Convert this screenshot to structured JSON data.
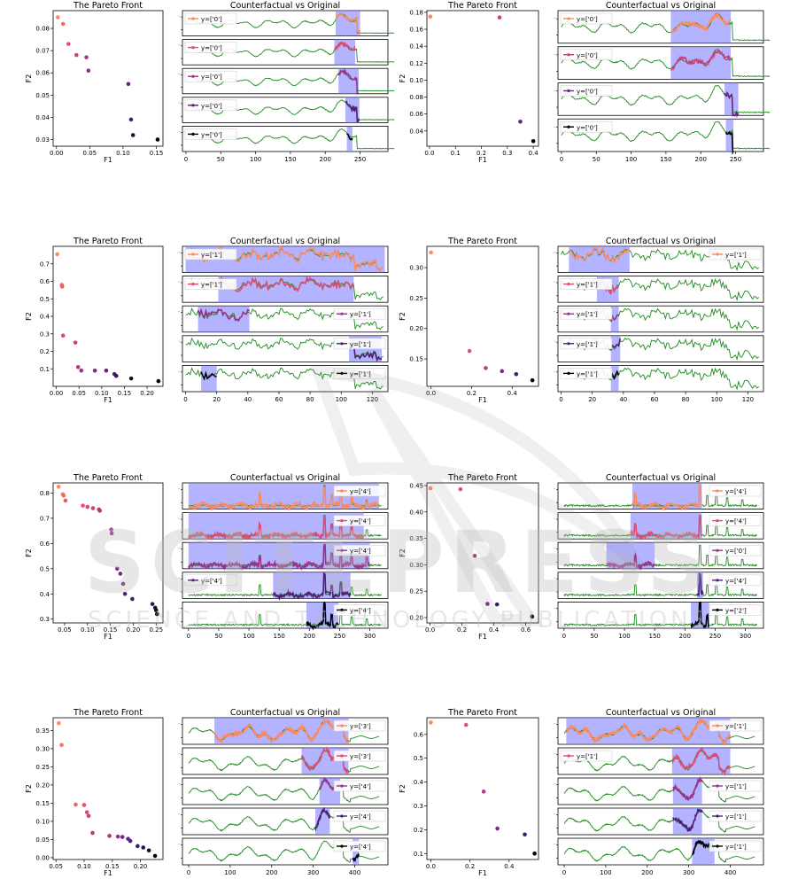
{
  "titles": {
    "pareto": "The Pareto Front",
    "cf": "Counterfactual vs Original",
    "xlabel": "F1",
    "ylabel": "F2"
  },
  "colors": {
    "original": "#1f8a1f",
    "highlight": "#8080ff",
    "gradient": [
      "#fa8a60",
      "#e8506a",
      "#b83a86",
      "#7a2a8a",
      "#401c66",
      "#000004"
    ]
  },
  "watermark": {
    "main": "SCITEPRESS",
    "sub": "SCIENCE AND TECHNOLOGY PUBLICATIONS"
  },
  "chart_data": [
    {
      "type": "scatter",
      "title": "The Pareto Front",
      "xlabel": "F1",
      "ylabel": "F2",
      "xticks": [
        "0.00",
        "0.05",
        "0.10",
        "0.15"
      ],
      "yticks": [
        "0.03",
        "0.04",
        "0.05",
        "0.06",
        "0.07",
        "0.08"
      ],
      "xlim": [
        -0.005,
        0.16
      ],
      "ylim": [
        0.027,
        0.088
      ],
      "x": [
        0.002,
        0.01,
        0.018,
        0.03,
        0.045,
        0.048,
        0.108,
        0.112,
        0.115,
        0.152
      ],
      "y": [
        0.085,
        0.082,
        0.073,
        0.068,
        0.067,
        0.061,
        0.055,
        0.039,
        0.032,
        0.03
      ]
    },
    {
      "type": "line",
      "title": "Counterfactual vs Original",
      "xticks": [
        "0",
        "50",
        "100",
        "150",
        "200",
        "250"
      ],
      "xlim": [
        -5,
        290
      ],
      "n": 300,
      "pattern": "smooth",
      "panels": [
        {
          "label": "y=['0']",
          "shade": [
            215,
            250
          ],
          "cf": [
            215,
            250
          ],
          "legend": "left"
        },
        {
          "label": "y=['0']",
          "shade": [
            213,
            243
          ],
          "cf": [
            213,
            243
          ],
          "legend": "left"
        },
        {
          "label": "y=['0']",
          "shade": [
            219,
            248
          ],
          "cf": [
            219,
            248
          ],
          "legend": "left"
        },
        {
          "label": "y=['0']",
          "shade": [
            229,
            249
          ],
          "cf": [
            229,
            249
          ],
          "legend": "left"
        },
        {
          "label": "y=['0']",
          "shade": [
            231,
            239
          ],
          "cf": [
            231,
            239
          ],
          "legend": "left"
        }
      ]
    },
    {
      "type": "scatter",
      "title": "The Pareto Front",
      "xlabel": "F1",
      "ylabel": "F2",
      "xticks": [
        "0.0",
        "0.1",
        "0.2",
        "0.3",
        "0.4"
      ],
      "yticks": [
        "0.04",
        "0.06",
        "0.08",
        "0.10",
        "0.12",
        "0.14",
        "0.16",
        "0.18"
      ],
      "xlim": [
        -0.01,
        0.42
      ],
      "ylim": [
        0.022,
        0.182
      ],
      "x": [
        0.003,
        0.27,
        0.35,
        0.4
      ],
      "y": [
        0.175,
        0.174,
        0.051,
        0.028
      ]
    },
    {
      "type": "line",
      "title": "Counterfactual vs Original",
      "xticks": [
        "0",
        "50",
        "100",
        "150",
        "200",
        "250"
      ],
      "xlim": [
        -5,
        290
      ],
      "n": 300,
      "pattern": "smooth",
      "panels": [
        {
          "label": "y=['0']",
          "shade": [
            157,
            243
          ],
          "cf": [
            157,
            243
          ],
          "legend": "left"
        },
        {
          "label": "y=['0']",
          "shade": [
            157,
            243
          ],
          "cf": [
            157,
            243
          ],
          "legend": "left"
        },
        {
          "label": "y=['0']",
          "shade": [
            234,
            254
          ],
          "cf": [
            234,
            254
          ],
          "legend": "left"
        },
        {
          "label": "y=['0']",
          "shade": [
            236,
            247
          ],
          "cf": [
            236,
            247
          ],
          "legend": "left"
        }
      ]
    },
    {
      "type": "scatter",
      "title": "The Pareto Front",
      "xlabel": "F1",
      "ylabel": "F2",
      "xticks": [
        "0.00",
        "0.05",
        "0.10",
        "0.15",
        "0.20"
      ],
      "yticks": [
        "0.1",
        "0.2",
        "0.3",
        "0.4",
        "0.5",
        "0.6",
        "0.7"
      ],
      "xlim": [
        -0.007,
        0.235
      ],
      "ylim": [
        0.0,
        0.8
      ],
      "x": [
        0.002,
        0.012,
        0.013,
        0.015,
        0.042,
        0.048,
        0.055,
        0.085,
        0.11,
        0.128,
        0.132,
        0.165,
        0.225
      ],
      "y": [
        0.755,
        0.58,
        0.57,
        0.29,
        0.25,
        0.11,
        0.09,
        0.09,
        0.09,
        0.07,
        0.06,
        0.045,
        0.03
      ]
    },
    {
      "type": "line",
      "title": "Counterfactual vs Original",
      "xticks": [
        "0",
        "20",
        "40",
        "60",
        "80",
        "100",
        "120"
      ],
      "xlim": [
        -2,
        130
      ],
      "n": 128,
      "pattern": "noisy",
      "panels": [
        {
          "label": "y=['1']",
          "shade": [
            0,
            128
          ],
          "cf": [
            0,
            128
          ],
          "legend": "left"
        },
        {
          "label": "y=['1']",
          "shade": [
            21,
            108
          ],
          "cf": [
            21,
            108
          ],
          "legend": "left"
        },
        {
          "label": "y=['1']",
          "shade": [
            8,
            41
          ],
          "cf": [
            8,
            41
          ],
          "legend": "right"
        },
        {
          "label": "y=['1']",
          "shade": [
            105,
            126
          ],
          "cf": [
            105,
            126
          ],
          "legend": "right"
        },
        {
          "label": "y=['1']",
          "shade": [
            10,
            20
          ],
          "cf": [
            10,
            20
          ],
          "legend": "right"
        }
      ]
    },
    {
      "type": "scatter",
      "title": "The Pareto Front",
      "xlabel": "F1",
      "ylabel": "F2",
      "xticks": [
        "0.0",
        "0.2",
        "0.4"
      ],
      "yticks": [
        "0.15",
        "0.20",
        "0.25",
        "0.30"
      ],
      "xlim": [
        -0.02,
        0.53
      ],
      "ylim": [
        0.105,
        0.335
      ],
      "x": [
        0.0,
        0.19,
        0.27,
        0.35,
        0.42,
        0.5
      ],
      "y": [
        0.325,
        0.163,
        0.135,
        0.13,
        0.125,
        0.115
      ]
    },
    {
      "type": "line",
      "title": "Counterfactual vs Original",
      "xticks": [
        "0",
        "20",
        "40",
        "60",
        "80",
        "100",
        "120"
      ],
      "xlim": [
        -2,
        130
      ],
      "n": 128,
      "pattern": "noisy",
      "panels": [
        {
          "label": "y=['1']",
          "shade": [
            5,
            44
          ],
          "cf": [
            5,
            44
          ],
          "legend": "right"
        },
        {
          "label": "y=['1']",
          "shade": [
            23,
            37
          ],
          "cf": [
            23,
            37
          ],
          "legend": "left"
        },
        {
          "label": "y=['1']",
          "shade": [
            32,
            37
          ],
          "cf": [
            32,
            37
          ],
          "legend": "left"
        },
        {
          "label": "y=['1']",
          "shade": [
            32,
            38
          ],
          "cf": [
            32,
            38
          ],
          "legend": "left"
        },
        {
          "label": "y=['1']",
          "shade": [
            32,
            37
          ],
          "cf": [
            32,
            37
          ],
          "legend": "left"
        }
      ]
    },
    {
      "type": "scatter",
      "title": "The Pareto Front",
      "xlabel": "F1",
      "ylabel": "F2",
      "xticks": [
        "0.05",
        "0.10",
        "0.15",
        "0.20",
        "0.25"
      ],
      "yticks": [
        "0.3",
        "0.4",
        "0.5",
        "0.6",
        "0.7",
        "0.8"
      ],
      "xlim": [
        0.025,
        0.265
      ],
      "ylim": [
        0.285,
        0.84
      ],
      "x": [
        0.037,
        0.046,
        0.048,
        0.052,
        0.09,
        0.1,
        0.112,
        0.125,
        0.127,
        0.152,
        0.153,
        0.165,
        0.172,
        0.178,
        0.182,
        0.198,
        0.242,
        0.248,
        0.25,
        0.252
      ],
      "y": [
        0.825,
        0.795,
        0.79,
        0.77,
        0.75,
        0.745,
        0.74,
        0.735,
        0.73,
        0.655,
        0.64,
        0.5,
        0.48,
        0.44,
        0.4,
        0.38,
        0.36,
        0.345,
        0.335,
        0.32
      ]
    },
    {
      "type": "line",
      "title": "Counterfactual vs Original",
      "xticks": [
        "0",
        "50",
        "100",
        "150",
        "200",
        "250",
        "300"
      ],
      "xlim": [
        -10,
        330
      ],
      "n": 320,
      "pattern": "spiky",
      "panels": [
        {
          "label": "y=['4']",
          "shade": [
            0,
            315
          ],
          "cf": [
            0,
            315
          ],
          "legend": "right"
        },
        {
          "label": "y=['4']",
          "shade": [
            0,
            290
          ],
          "cf": [
            0,
            290
          ],
          "legend": "right"
        },
        {
          "label": "y=['4']",
          "shade": [
            0,
            300
          ],
          "cf": [
            0,
            300
          ],
          "legend": "right"
        },
        {
          "label": "y=['4']",
          "shade": [
            140,
            268
          ],
          "cf": [
            140,
            268
          ],
          "legend": "left"
        },
        {
          "label": "y=['4']",
          "shade": [
            195,
            248
          ],
          "cf": [
            195,
            248
          ],
          "legend": "right"
        }
      ]
    },
    {
      "type": "scatter",
      "title": "The Pareto Front",
      "xlabel": "F1",
      "ylabel": "F2",
      "xticks": [
        "0.0",
        "0.2",
        "0.4",
        "0.6"
      ],
      "yticks": [
        "0.20",
        "0.25",
        "0.30",
        "0.35",
        "0.40",
        "0.45"
      ],
      "xlim": [
        -0.02,
        0.68
      ],
      "ylim": [
        0.19,
        0.455
      ],
      "x": [
        0.003,
        0.19,
        0.28,
        0.36,
        0.42,
        0.64
      ],
      "y": [
        0.445,
        0.443,
        0.317,
        0.226,
        0.225,
        0.202
      ]
    },
    {
      "type": "line",
      "title": "Counterfactual vs Original",
      "xticks": [
        "0",
        "50",
        "100",
        "150",
        "200",
        "250",
        "300"
      ],
      "xlim": [
        -10,
        330
      ],
      "n": 320,
      "pattern": "spiky",
      "panels": [
        {
          "label": "y=['4']",
          "shade": [
            113,
            228
          ],
          "cf": [
            113,
            228
          ],
          "legend": "right"
        },
        {
          "label": "y=['4']",
          "shade": [
            110,
            228
          ],
          "cf": [
            110,
            228
          ],
          "legend": "right"
        },
        {
          "label": "y=['0']",
          "shade": [
            70,
            150
          ],
          "cf": [
            70,
            150
          ],
          "legend": "right"
        },
        {
          "label": "y=['4']",
          "shade": [
            220,
            230
          ],
          "cf": [
            220,
            230
          ],
          "legend": "right"
        },
        {
          "label": "y=['2']",
          "shade": [
            210,
            240
          ],
          "cf": [
            210,
            240
          ],
          "legend": "right"
        }
      ]
    },
    {
      "type": "scatter",
      "title": "The Pareto Front",
      "xlabel": "F1",
      "ylabel": "F2",
      "xticks": [
        "0.05",
        "0.10",
        "0.15",
        "0.20"
      ],
      "yticks": [
        "0.00",
        "0.05",
        "0.10",
        "0.15",
        "0.20",
        "0.25",
        "0.30",
        "0.35"
      ],
      "xlim": [
        0.045,
        0.24
      ],
      "ylim": [
        -0.005,
        0.385
      ],
      "x": [
        0.055,
        0.06,
        0.085,
        0.1,
        0.105,
        0.108,
        0.115,
        0.145,
        0.16,
        0.168,
        0.178,
        0.182,
        0.195,
        0.205,
        0.215,
        0.226
      ],
      "y": [
        0.37,
        0.31,
        0.146,
        0.145,
        0.125,
        0.115,
        0.068,
        0.06,
        0.058,
        0.057,
        0.052,
        0.046,
        0.032,
        0.028,
        0.02,
        0.005
      ]
    },
    {
      "type": "line",
      "title": "Counterfactual vs Original",
      "xticks": [
        "0",
        "100",
        "200",
        "300",
        "400"
      ],
      "xlim": [
        -15,
        480
      ],
      "n": 460,
      "pattern": "wave",
      "panels": [
        {
          "label": "y=['3']",
          "shade": [
            62,
            385
          ],
          "cf": [
            62,
            385
          ],
          "legend": "right"
        },
        {
          "label": "y=['3']",
          "shade": [
            272,
            385
          ],
          "cf": [
            272,
            385
          ],
          "legend": "right"
        },
        {
          "label": "y=['4']",
          "shade": [
            315,
            365
          ],
          "cf": [
            315,
            365
          ],
          "legend": "right"
        },
        {
          "label": "y=['4']",
          "shade": [
            305,
            340
          ],
          "cf": [
            305,
            340
          ],
          "legend": "right"
        },
        {
          "label": "y=['4']",
          "shade": [
            395,
            410
          ],
          "cf": [
            395,
            410
          ],
          "legend": "right"
        }
      ]
    },
    {
      "type": "scatter",
      "title": "The Pareto Front",
      "xlabel": "F1",
      "ylabel": "F2",
      "xticks": [
        "0.0",
        "0.2",
        "0.4"
      ],
      "yticks": [
        "0.1",
        "0.2",
        "0.3",
        "0.4",
        "0.5",
        "0.6"
      ],
      "xlim": [
        -0.02,
        0.55
      ],
      "ylim": [
        0.075,
        0.67
      ],
      "x": [
        0.0,
        0.18,
        0.27,
        0.34,
        0.48,
        0.53
      ],
      "y": [
        0.65,
        0.64,
        0.36,
        0.205,
        0.18,
        0.1
      ]
    },
    {
      "type": "line",
      "title": "Counterfactual vs Original",
      "xticks": [
        "0",
        "100",
        "200",
        "300",
        "400"
      ],
      "xlim": [
        -15,
        480
      ],
      "n": 460,
      "pattern": "wave",
      "panels": [
        {
          "label": "y=['1']",
          "shade": [
            5,
            400
          ],
          "cf": [
            5,
            400
          ],
          "legend": "right"
        },
        {
          "label": "y=['1']",
          "shade": [
            260,
            400
          ],
          "cf": [
            260,
            400
          ],
          "legend": "left"
        },
        {
          "label": "y=['1']",
          "shade": [
            262,
            332
          ],
          "cf": [
            262,
            332
          ],
          "legend": "right"
        },
        {
          "label": "y=['1']",
          "shade": [
            262,
            332
          ],
          "cf": [
            262,
            332
          ],
          "legend": "right"
        },
        {
          "label": "y=['1']",
          "shade": [
            308,
            362
          ],
          "cf": [
            308,
            362
          ],
          "legend": "right"
        }
      ]
    }
  ]
}
